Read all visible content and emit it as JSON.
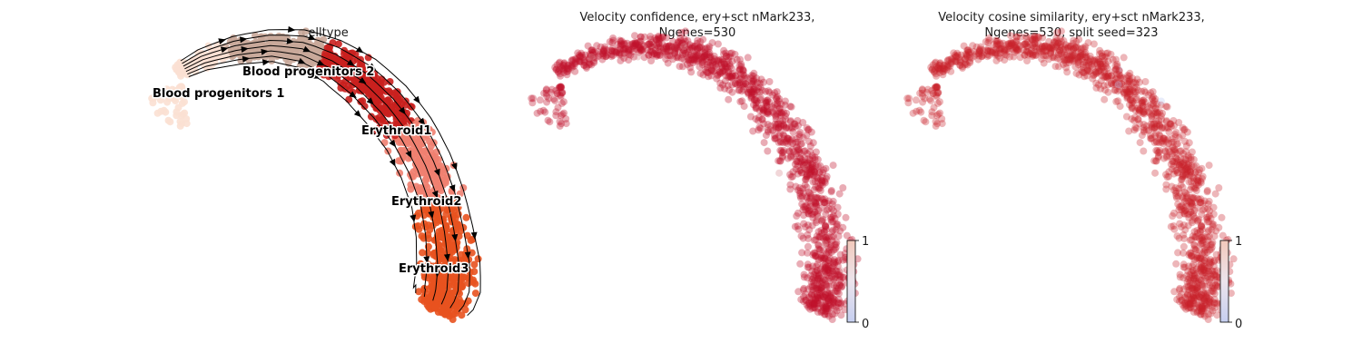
{
  "chart_data": [
    {
      "type": "scatter",
      "title": "celltype",
      "subtitle": "",
      "legend": "on data",
      "categories": [
        "Blood progenitors 1",
        "Blood progenitors 2",
        "Erythroid1",
        "Erythroid2",
        "Erythroid3"
      ],
      "colors": [
        "#fbe0d3",
        "#c9a99a",
        "#c9201e",
        "#f08070",
        "#e8521f"
      ],
      "velocity_stream": true,
      "colorbar": false
    },
    {
      "type": "scatter",
      "title": "Velocity confidence, ery+sct nMark233,",
      "subtitle": "Ngenes=530",
      "colorbar": {
        "ticks": [
          0,
          1
        ],
        "range": [
          0,
          1
        ],
        "cmap": "coolwarm"
      },
      "point_color": "#c0102a",
      "typical_value": 0.95
    },
    {
      "type": "scatter",
      "title": "Velocity cosine similarity, ery+sct nMark233,",
      "subtitle": "Ngenes=530, split seed=323",
      "colorbar": {
        "ticks": [
          0,
          1
        ],
        "range": [
          0,
          1
        ],
        "cmap": "coolwarm"
      },
      "point_color": "#c8202a",
      "typical_value": 0.92
    }
  ]
}
